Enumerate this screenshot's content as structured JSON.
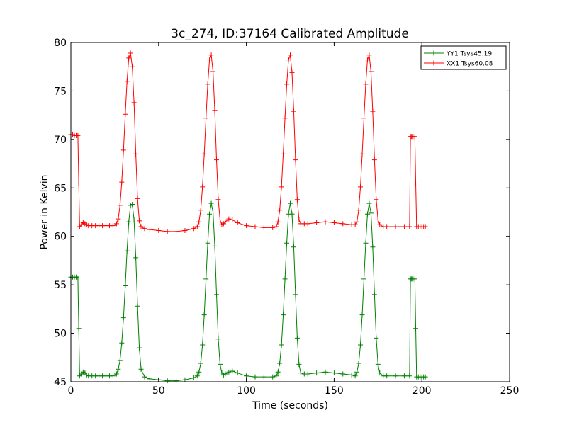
{
  "chart_data": {
    "type": "line",
    "title": "3c_274, ID:37164 Calibrated Amplitude",
    "xlabel": "Time (seconds)",
    "ylabel": "Power in Kelvin",
    "xlim": [
      0,
      250
    ],
    "ylim": [
      45,
      80
    ],
    "xticks": [
      0,
      50,
      100,
      150,
      200,
      250
    ],
    "yticks": [
      45,
      50,
      55,
      60,
      65,
      70,
      75,
      80
    ],
    "grid": false,
    "legend_position": "top-right",
    "marker": "+",
    "series": [
      {
        "name": "YY1 Tsys45.19",
        "color": "#008000",
        "x": [
          0,
          1,
          2,
          3,
          4,
          4.5,
          5,
          6,
          7,
          8,
          9,
          10,
          12,
          14,
          16,
          18,
          20,
          22,
          24,
          26,
          27,
          28,
          29,
          30,
          31,
          32,
          33,
          34,
          35,
          36,
          37,
          38,
          39,
          40,
          42,
          45,
          50,
          55,
          60,
          65,
          70,
          72,
          73,
          74,
          75,
          76,
          77,
          78,
          79,
          80,
          81,
          82,
          83,
          84,
          85,
          86,
          87,
          88,
          90,
          92,
          95,
          100,
          105,
          110,
          115,
          117,
          118,
          119,
          120,
          121,
          122,
          123,
          124,
          125,
          126,
          127,
          128,
          129,
          130,
          131,
          133,
          135,
          140,
          145,
          150,
          155,
          160,
          162,
          163,
          164,
          165,
          166,
          167,
          168,
          169,
          170,
          171,
          172,
          173,
          174,
          175,
          176,
          178,
          180,
          185,
          190,
          193,
          193.5,
          194,
          195,
          196,
          196.5,
          197,
          198,
          199,
          200,
          201,
          202
        ],
        "y": [
          55.8,
          55.8,
          55.8,
          55.8,
          55.7,
          50.5,
          45.6,
          45.8,
          46.0,
          45.9,
          45.7,
          45.6,
          45.6,
          45.6,
          45.6,
          45.6,
          45.6,
          45.6,
          45.6,
          45.8,
          46.3,
          47.2,
          49.0,
          51.6,
          54.9,
          58.5,
          61.5,
          63.2,
          63.3,
          61.7,
          57.8,
          52.8,
          48.5,
          46.3,
          45.5,
          45.3,
          45.2,
          45.1,
          45.1,
          45.2,
          45.4,
          45.6,
          46.0,
          46.9,
          48.8,
          51.9,
          55.6,
          59.3,
          62.3,
          63.4,
          62.5,
          59.0,
          54.0,
          49.4,
          46.8,
          45.9,
          45.7,
          45.8,
          46.0,
          46.1,
          45.9,
          45.6,
          45.5,
          45.5,
          45.5,
          45.6,
          46.0,
          46.9,
          48.8,
          51.9,
          55.6,
          59.3,
          62.3,
          63.4,
          62.3,
          58.9,
          54.0,
          49.5,
          46.8,
          45.9,
          45.8,
          45.8,
          45.9,
          46.0,
          45.9,
          45.8,
          45.7,
          45.6,
          46.0,
          46.9,
          48.8,
          51.9,
          55.6,
          59.3,
          62.3,
          63.4,
          62.4,
          58.9,
          54.0,
          49.5,
          46.8,
          45.9,
          45.6,
          45.6,
          45.6,
          45.6,
          45.6,
          55.6,
          55.6,
          55.6,
          55.6,
          50.5,
          45.5,
          45.5,
          45.5,
          45.5,
          45.5,
          45.5
        ]
      },
      {
        "name": "XX1 Tsys60.08",
        "color": "#ff0000",
        "x": [
          0,
          1,
          2,
          3,
          4,
          4.5,
          5,
          6,
          7,
          8,
          9,
          10,
          12,
          14,
          16,
          18,
          20,
          22,
          24,
          26,
          27,
          28,
          29,
          30,
          31,
          32,
          33,
          34,
          35,
          36,
          37,
          38,
          39,
          40,
          42,
          45,
          50,
          55,
          60,
          65,
          70,
          72,
          73,
          74,
          75,
          76,
          77,
          78,
          79,
          80,
          81,
          82,
          83,
          84,
          85,
          86,
          87,
          88,
          90,
          92,
          95,
          100,
          105,
          110,
          115,
          117,
          118,
          119,
          120,
          121,
          122,
          123,
          124,
          125,
          126,
          127,
          128,
          129,
          130,
          131,
          133,
          135,
          140,
          145,
          150,
          155,
          160,
          162,
          163,
          164,
          165,
          166,
          167,
          168,
          169,
          170,
          171,
          172,
          173,
          174,
          175,
          176,
          178,
          180,
          185,
          190,
          193,
          193.5,
          194,
          195,
          196,
          196.5,
          197,
          198,
          199,
          200,
          201,
          202
        ],
        "y": [
          70.5,
          70.5,
          70.4,
          70.4,
          70.4,
          65.5,
          61.0,
          61.2,
          61.4,
          61.3,
          61.2,
          61.1,
          61.1,
          61.1,
          61.1,
          61.1,
          61.1,
          61.1,
          61.1,
          61.3,
          61.8,
          63.2,
          65.6,
          68.9,
          72.6,
          76.0,
          78.4,
          78.9,
          77.5,
          73.8,
          68.5,
          63.9,
          61.6,
          61.0,
          60.8,
          60.7,
          60.6,
          60.5,
          60.5,
          60.6,
          60.8,
          61.0,
          61.5,
          62.7,
          65.1,
          68.5,
          72.2,
          75.7,
          78.2,
          78.7,
          77.0,
          73.0,
          67.9,
          63.8,
          61.7,
          61.2,
          61.3,
          61.5,
          61.8,
          61.7,
          61.4,
          61.1,
          61.0,
          60.9,
          60.9,
          61.0,
          61.5,
          62.7,
          65.1,
          68.5,
          72.2,
          75.7,
          78.2,
          78.7,
          76.9,
          72.9,
          67.9,
          63.8,
          61.7,
          61.3,
          61.3,
          61.3,
          61.4,
          61.5,
          61.4,
          61.3,
          61.2,
          61.2,
          61.5,
          62.7,
          65.1,
          68.5,
          72.2,
          75.7,
          78.2,
          78.7,
          77.0,
          72.9,
          67.9,
          63.8,
          61.7,
          61.2,
          61.0,
          61.0,
          61.0,
          61.0,
          61.0,
          70.3,
          70.3,
          70.3,
          70.3,
          65.5,
          61.0,
          61.0,
          61.0,
          61.0,
          61.0,
          61.0
        ]
      }
    ]
  }
}
